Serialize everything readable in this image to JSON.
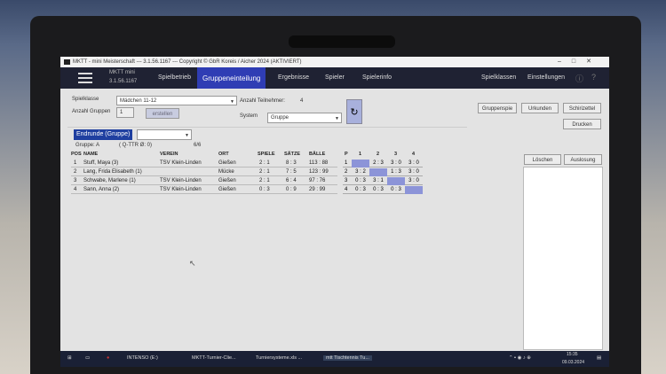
{
  "window": {
    "title": "MKTT - mini Meisterschaft --- 3.1.56.1167 --- Copyright © GbR Koreis / Aicher 2024   (AKTIVIERT)",
    "app_name": "MKTT mini",
    "version": "3.1.56.1167"
  },
  "nav": {
    "tabs": [
      {
        "label": "Spielbetrieb"
      },
      {
        "label": "Gruppeneinteilung",
        "active": true
      },
      {
        "label": "Ergebnisse"
      },
      {
        "label": "Spieler"
      },
      {
        "label": "Spielerinfo"
      }
    ],
    "right": [
      "Spielklassen",
      "Einstellungen"
    ]
  },
  "form": {
    "spielklasse_label": "Spielklasse",
    "spielklasse_value": "Mädchen 11-12",
    "anzahl_gruppen_label": "Anzahl Gruppen",
    "anzahl_gruppen_value": "1",
    "erstellen": "erstellen",
    "teilnehmer_label": "Anzahl Teilnehmer:",
    "teilnehmer_value": "4",
    "system_label": "System",
    "system_value": "Gruppe"
  },
  "buttons": {
    "gruppenspiel": "Gruppenspie",
    "urkunden": "Urkunden",
    "schiri": "Schirizettel",
    "drucken": "Drucken",
    "loeschen": "Löschen",
    "auslosung": "Auslosung"
  },
  "group": {
    "endrunde": "Endrunde (Gruppe)",
    "name": "Gruppe: A",
    "qttr": "( Q-TTR Ø: 0)",
    "count": "6/6",
    "headers": [
      "POS",
      "NAME",
      "VEREIN",
      "ORT",
      "SPIELE",
      "SÄTZE",
      "BÄLLE"
    ],
    "rows": [
      {
        "pos": "1",
        "name": "Stuff, Maya (3)",
        "verein": "TSV Klein-Linden",
        "ort": "Gießen",
        "spiele": "2 : 1",
        "saetze": "8 : 3",
        "baelle": "113 : 88"
      },
      {
        "pos": "2",
        "name": "Lang, Frida Elisabeth (1)",
        "verein": "",
        "ort": "Mücke",
        "spiele": "2 : 1",
        "saetze": "7 : 5",
        "baelle": "123 : 99"
      },
      {
        "pos": "3",
        "name": "Schwabe, Marlene (1)",
        "verein": "TSV Klein-Linden",
        "ort": "Gießen",
        "spiele": "2 : 1",
        "saetze": "6 : 4",
        "baelle": "97 : 76"
      },
      {
        "pos": "4",
        "name": "Sann, Anna (2)",
        "verein": "TSV Klein-Linden",
        "ort": "Gießen",
        "spiele": "0 : 3",
        "saetze": "0 : 9",
        "baelle": "29 : 99"
      }
    ],
    "matrix_headers": [
      "P",
      "1",
      "2",
      "3",
      "4"
    ],
    "matrix": [
      [
        "1",
        "",
        "2 : 3",
        "3 : 0",
        "3 : 0"
      ],
      [
        "2",
        "3 : 2",
        "",
        "1 : 3",
        "3 : 0"
      ],
      [
        "3",
        "0 : 3",
        "3 : 1",
        "",
        "3 : 0"
      ],
      [
        "4",
        "0 : 3",
        "0 : 3",
        "0 : 3",
        ""
      ]
    ]
  },
  "taskbar": {
    "items": [
      "INTENSO (E:)",
      "MKTT-Turnier-Clie...",
      "Turniersysteme.xls ...",
      "mtt Tischtennis Tu..."
    ],
    "time": "15:35",
    "date": "09.03.2024"
  },
  "colors": {
    "nav": "#1f2233",
    "accent": "#2f3db4",
    "diag": "#8c94d8"
  }
}
